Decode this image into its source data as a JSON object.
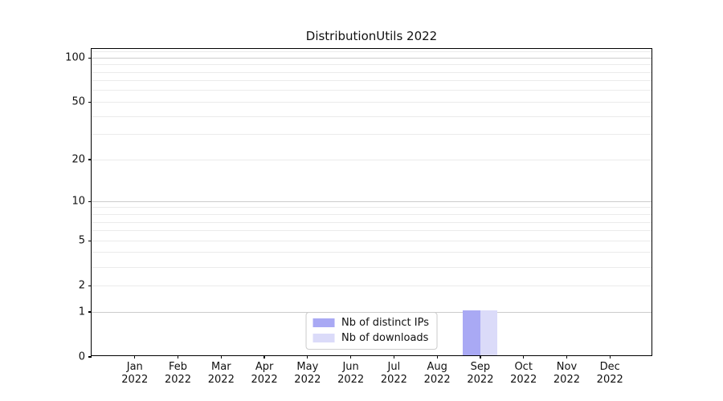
{
  "chart_data": {
    "type": "bar",
    "title": "DistributionUtils 2022",
    "categories": [
      {
        "month": "Jan",
        "year": "2022"
      },
      {
        "month": "Feb",
        "year": "2022"
      },
      {
        "month": "Mar",
        "year": "2022"
      },
      {
        "month": "Apr",
        "year": "2022"
      },
      {
        "month": "May",
        "year": "2022"
      },
      {
        "month": "Jun",
        "year": "2022"
      },
      {
        "month": "Jul",
        "year": "2022"
      },
      {
        "month": "Aug",
        "year": "2022"
      },
      {
        "month": "Sep",
        "year": "2022"
      },
      {
        "month": "Oct",
        "year": "2022"
      },
      {
        "month": "Nov",
        "year": "2022"
      },
      {
        "month": "Dec",
        "year": "2022"
      }
    ],
    "series": [
      {
        "name": "Nb of distinct IPs",
        "color": "#a9a9f4",
        "values": [
          0,
          0,
          0,
          0,
          0,
          0,
          0,
          0,
          1,
          0,
          0,
          0
        ]
      },
      {
        "name": "Nb of downloads",
        "color": "#dbdbf9",
        "values": [
          0,
          0,
          0,
          0,
          0,
          0,
          0,
          0,
          1,
          0,
          0,
          0
        ]
      }
    ],
    "y_scale": "log1p",
    "ylim": [
      0,
      115
    ],
    "y_ticks": [
      0,
      1,
      2,
      5,
      10,
      20,
      50,
      100
    ],
    "y_minor_gridlines": [
      3,
      4,
      6,
      7,
      8,
      9,
      30,
      40,
      60,
      70,
      80,
      90,
      110
    ],
    "y_decade_gridlines": [
      1,
      10,
      100
    ],
    "xlabel": "",
    "ylabel": "",
    "grid": true,
    "legend_position": "lower center (inside plot)"
  }
}
